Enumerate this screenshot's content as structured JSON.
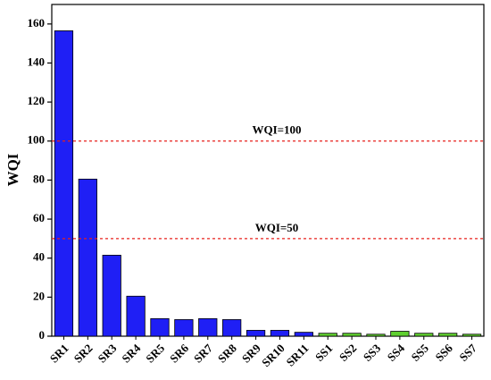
{
  "chart_data": {
    "type": "bar",
    "ylabel": "WQI",
    "categories": [
      "SR1",
      "SR2",
      "SR3",
      "SR4",
      "SR5",
      "SR6",
      "SR7",
      "SR8",
      "SR9",
      "SR10",
      "SR11",
      "SS1",
      "SS2",
      "SS3",
      "SS4",
      "SS5",
      "SS6",
      "SS7"
    ],
    "values": [
      156.5,
      80.5,
      41.5,
      20.5,
      9,
      8.5,
      9,
      8.5,
      3,
      3,
      2,
      1.5,
      1.5,
      1,
      2.5,
      1.5,
      1.5,
      1
    ],
    "colors": [
      "#1f1ff5",
      "#1f1ff5",
      "#1f1ff5",
      "#1f1ff5",
      "#1f1ff5",
      "#1f1ff5",
      "#1f1ff5",
      "#1f1ff5",
      "#1f1ff5",
      "#1f1ff5",
      "#1f1ff5",
      "#5fcf2f",
      "#5fcf2f",
      "#5fcf2f",
      "#5fcf2f",
      "#5fcf2f",
      "#5fcf2f",
      "#5fcf2f"
    ],
    "ylim": [
      0,
      170
    ],
    "yticks": [
      0,
      20,
      40,
      60,
      80,
      100,
      120,
      140,
      160
    ],
    "reference_lines": [
      {
        "value": 100,
        "label": "WQI=100",
        "color": "#e8201c"
      },
      {
        "value": 50,
        "label": "WQI=50",
        "color": "#e8201c"
      }
    ]
  }
}
